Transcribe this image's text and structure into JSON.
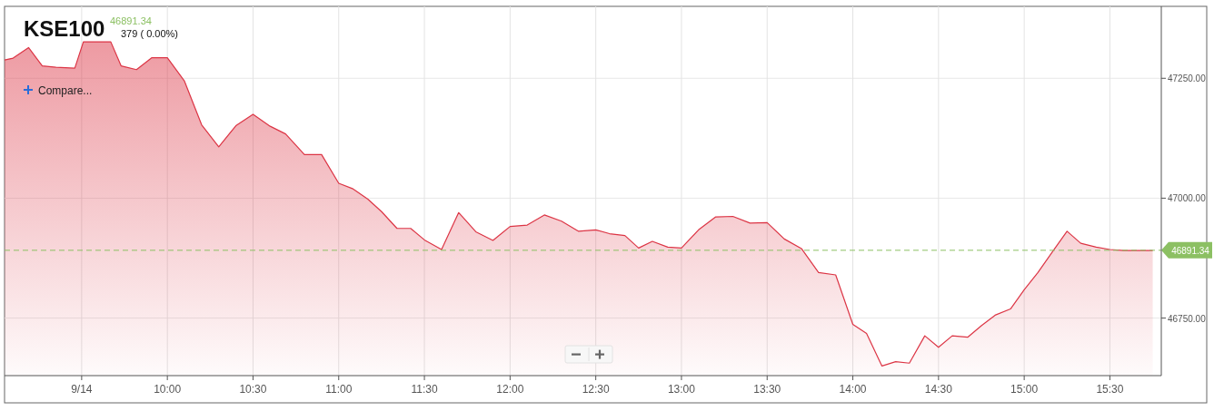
{
  "chart_data": {
    "type": "area",
    "title": "KSE100",
    "annotations": [
      "46891.34",
      "379 ( 0.00%)",
      "Compare..."
    ],
    "x": [
      9.05,
      9.1,
      9.19,
      9.27,
      9.35,
      9.46,
      9.51,
      9.67,
      9.73,
      9.82,
      9.91,
      10.0,
      10.1,
      10.2,
      10.3,
      10.4,
      10.5,
      10.6,
      10.69,
      10.8,
      10.9,
      11.0,
      11.08,
      11.17,
      11.25,
      11.34,
      11.42,
      11.5,
      11.6,
      11.7,
      11.8,
      11.9,
      12.0,
      12.1,
      12.2,
      12.3,
      12.4,
      12.5,
      12.58,
      12.67,
      12.75,
      12.83,
      12.92,
      13.0,
      13.1,
      13.2,
      13.3,
      13.4,
      13.5,
      13.6,
      13.7,
      13.8,
      13.9,
      14.0,
      14.08,
      14.17,
      14.25,
      14.33,
      14.42,
      14.5,
      14.58,
      14.67,
      14.75,
      14.83,
      14.92,
      15.0,
      15.08,
      15.17,
      15.25,
      15.33,
      15.42,
      15.5,
      15.58,
      15.75
    ],
    "series": [
      {
        "color": "#dc3545",
        "values": [
          47288,
          47292,
          47314,
          47276,
          47273,
          47271,
          47326,
          47326,
          47276,
          47268,
          47293,
          47293,
          47244,
          47153,
          47107,
          47151,
          47175,
          47150,
          47134,
          47091,
          47091,
          47031,
          47020,
          46998,
          46972,
          46937,
          46937,
          46913,
          46893,
          46970,
          46930,
          46912,
          46941,
          46944,
          46965,
          46952,
          46931,
          46934,
          46926,
          46922,
          46896,
          46910,
          46898,
          46896,
          46934,
          46961,
          46962,
          46948,
          46949,
          46915,
          46895,
          46845,
          46840,
          46737,
          46718,
          46650,
          46659,
          46656,
          46713,
          46689,
          46713,
          46710,
          46734,
          46756,
          46769,
          46809,
          46845,
          46891,
          46931,
          46906,
          46898,
          46893,
          46891,
          46891
        ]
      }
    ],
    "xlim": [
      9.05,
      15.8
    ],
    "xticks": [
      {
        "value": 9.5,
        "label": "9/14"
      },
      {
        "value": 10,
        "label": "10:00"
      },
      {
        "value": 10.5,
        "label": "10:30"
      },
      {
        "value": 11,
        "label": "11:00"
      },
      {
        "value": 11.5,
        "label": "11:30"
      },
      {
        "value": 12,
        "label": "12:00"
      },
      {
        "value": 12.5,
        "label": "12:30"
      },
      {
        "value": 13,
        "label": "13:00"
      },
      {
        "value": 13.5,
        "label": "13:30"
      },
      {
        "value": 14,
        "label": "14:00"
      },
      {
        "value": 14.5,
        "label": "14:30"
      },
      {
        "value": 15,
        "label": "15:00"
      },
      {
        "value": 15.5,
        "label": "15:30"
      }
    ],
    "ylim": [
      46630,
      47400
    ],
    "yticks": [
      {
        "value": 46750,
        "label": "46750.00"
      },
      {
        "value": 47000,
        "label": "47000.00"
      },
      {
        "value": 47250,
        "label": "47250.00"
      }
    ],
    "ref_lines": [
      {
        "axis": "y",
        "value": 46891.34,
        "label": "46891.34",
        "color": "#8cc063",
        "line_style": "dashed"
      }
    ],
    "grid": true
  }
}
